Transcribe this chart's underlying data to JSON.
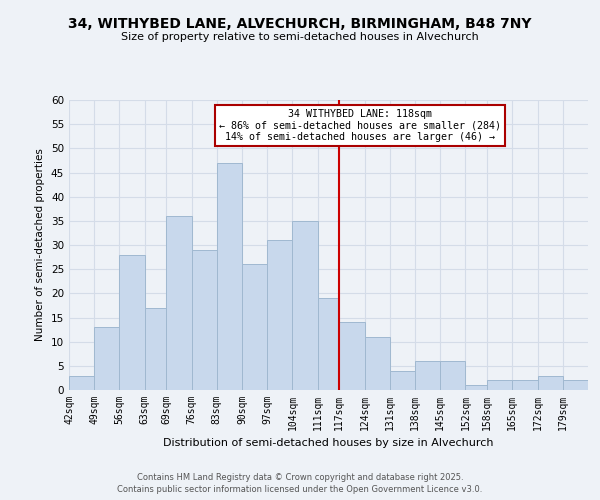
{
  "title": "34, WITHYBED LANE, ALVECHURCH, BIRMINGHAM, B48 7NY",
  "subtitle": "Size of property relative to semi-detached houses in Alvechurch",
  "xlabel": "Distribution of semi-detached houses by size in Alvechurch",
  "ylabel": "Number of semi-detached properties",
  "footer_line1": "Contains HM Land Registry data © Crown copyright and database right 2025.",
  "footer_line2": "Contains public sector information licensed under the Open Government Licence v3.0.",
  "bin_labels": [
    "42sqm",
    "49sqm",
    "56sqm",
    "63sqm",
    "69sqm",
    "76sqm",
    "83sqm",
    "90sqm",
    "97sqm",
    "104sqm",
    "111sqm",
    "117sqm",
    "124sqm",
    "131sqm",
    "138sqm",
    "145sqm",
    "152sqm",
    "158sqm",
    "165sqm",
    "172sqm",
    "179sqm"
  ],
  "bin_edges": [
    42,
    49,
    56,
    63,
    69,
    76,
    83,
    90,
    97,
    104,
    111,
    117,
    124,
    131,
    138,
    145,
    152,
    158,
    165,
    172,
    179,
    186
  ],
  "bar_heights": [
    3,
    13,
    28,
    17,
    36,
    29,
    47,
    26,
    31,
    35,
    19,
    14,
    11,
    4,
    6,
    6,
    1,
    2,
    2,
    3,
    2
  ],
  "bar_color": "#c8d8ec",
  "bar_edge_color": "#a0b8d0",
  "grid_color": "#d4dce8",
  "background_color": "#eef2f7",
  "property_line_x": 117,
  "property_label": "34 WITHYBED LANE: 118sqm",
  "annotation_line1": "← 86% of semi-detached houses are smaller (284)",
  "annotation_line2": "14% of semi-detached houses are larger (46) →",
  "annotation_box_color": "#ffffff",
  "annotation_box_edge": "#aa0000",
  "property_line_color": "#cc0000",
  "ylim": [
    0,
    60
  ],
  "yticks": [
    0,
    5,
    10,
    15,
    20,
    25,
    30,
    35,
    40,
    45,
    50,
    55,
    60
  ]
}
